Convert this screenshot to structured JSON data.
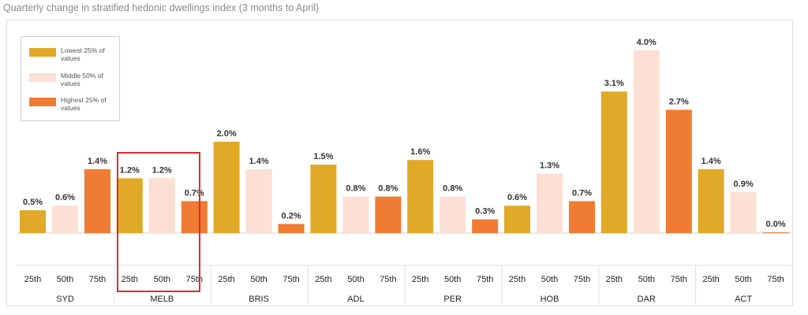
{
  "title": "Quarterly change in stratified hedonic dwellings index (3 months to April)",
  "legend": [
    {
      "label": "Lowest 25% of values",
      "color": "#e0a928"
    },
    {
      "label": "Middle 50% of values",
      "color": "#fbe0d3"
    },
    {
      "label": "Highest 25% of values",
      "color": "#f07b32"
    }
  ],
  "highlight_group": "MELB",
  "chart_data": {
    "type": "bar",
    "title": "Quarterly change in stratified hedonic dwellings index (3 months to April)",
    "xlabel": "",
    "ylabel": "",
    "ylim": [
      0,
      4.0
    ],
    "grid": false,
    "legend_position": "top-left",
    "groups": [
      "SYD",
      "MELB",
      "BRIS",
      "ADL",
      "PER",
      "HOB",
      "DAR",
      "ACT"
    ],
    "percentiles": [
      "25th",
      "50th",
      "75th"
    ],
    "series": [
      {
        "name": "Lowest 25% of values",
        "percentile": "25th",
        "values": [
          0.5,
          1.2,
          2.0,
          1.5,
          1.6,
          0.6,
          3.1,
          1.4
        ]
      },
      {
        "name": "Middle 50% of values",
        "percentile": "50th",
        "values": [
          0.6,
          1.2,
          1.4,
          0.8,
          0.8,
          1.3,
          4.0,
          0.9
        ]
      },
      {
        "name": "Highest 25% of values",
        "percentile": "75th",
        "values": [
          1.4,
          0.7,
          0.2,
          0.8,
          0.3,
          0.7,
          2.7,
          0.0
        ]
      }
    ],
    "data_labels": [
      [
        "0.5%",
        "0.6%",
        "1.4%"
      ],
      [
        "1.2%",
        "1.2%",
        "0.7%"
      ],
      [
        "2.0%",
        "1.4%",
        "0.2%"
      ],
      [
        "1.5%",
        "0.8%",
        "0.8%"
      ],
      [
        "1.6%",
        "0.8%",
        "0.3%"
      ],
      [
        "0.6%",
        "1.3%",
        "0.7%"
      ],
      [
        "3.1%",
        "4.0%",
        "2.7%"
      ],
      [
        "1.4%",
        "0.9%",
        "0.0%"
      ]
    ]
  }
}
